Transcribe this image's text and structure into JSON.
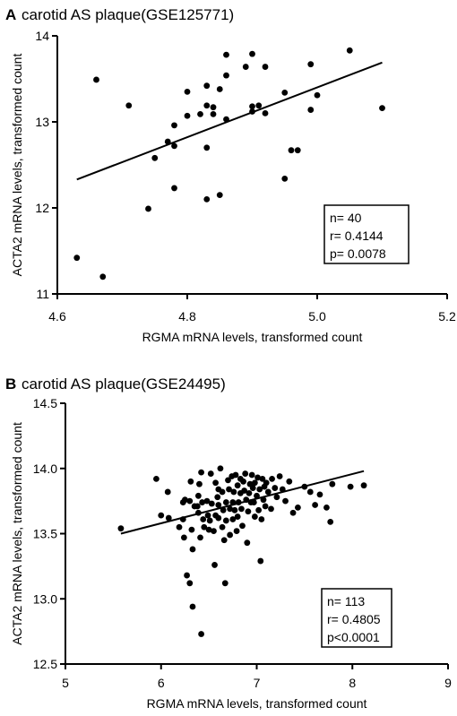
{
  "chart_data": [
    {
      "type": "scatter",
      "panel": "A",
      "title": "carotid AS plaque(GSE125771)",
      "xlabel": "RGMA mRNA levels, transformed count",
      "ylabel": "ACTA2 mRNA levels, transformed count",
      "xlim": [
        4.6,
        5.2
      ],
      "ylim": [
        11,
        14
      ],
      "xticks": [
        "4.6",
        "4.8",
        "5.0",
        "5.2"
      ],
      "yticks": [
        "11",
        "12",
        "13",
        "14"
      ],
      "grid": false,
      "fit_line": {
        "x": [
          4.63,
          5.1
        ],
        "y": [
          12.33,
          13.69
        ]
      },
      "stats": [
        "n= 40",
        "r= 0.4144",
        "p= 0.0078"
      ],
      "points": [
        [
          4.63,
          11.42
        ],
        [
          4.66,
          13.49
        ],
        [
          4.67,
          11.2
        ],
        [
          4.71,
          13.19
        ],
        [
          4.74,
          11.99
        ],
        [
          4.75,
          12.58
        ],
        [
          4.77,
          12.77
        ],
        [
          4.78,
          12.72
        ],
        [
          4.78,
          12.96
        ],
        [
          4.78,
          12.23
        ],
        [
          4.8,
          13.35
        ],
        [
          4.8,
          13.07
        ],
        [
          4.82,
          13.09
        ],
        [
          4.83,
          13.42
        ],
        [
          4.83,
          13.19
        ],
        [
          4.83,
          12.7
        ],
        [
          4.83,
          12.1
        ],
        [
          4.84,
          13.17
        ],
        [
          4.84,
          13.09
        ],
        [
          4.85,
          13.38
        ],
        [
          4.85,
          12.15
        ],
        [
          4.86,
          13.78
        ],
        [
          4.86,
          13.54
        ],
        [
          4.86,
          13.03
        ],
        [
          4.89,
          13.64
        ],
        [
          4.9,
          13.79
        ],
        [
          4.9,
          13.18
        ],
        [
          4.9,
          13.12
        ],
        [
          4.91,
          13.19
        ],
        [
          4.92,
          13.64
        ],
        [
          4.92,
          13.1
        ],
        [
          4.95,
          13.34
        ],
        [
          4.95,
          12.34
        ],
        [
          4.96,
          12.67
        ],
        [
          4.97,
          12.67
        ],
        [
          4.99,
          13.67
        ],
        [
          4.99,
          13.14
        ],
        [
          5.0,
          13.31
        ],
        [
          5.05,
          13.83
        ],
        [
          5.1,
          13.16
        ]
      ]
    },
    {
      "type": "scatter",
      "panel": "B",
      "title": "carotid AS plaque(GSE24495)",
      "xlabel": "RGMA mRNA levels, transformed count",
      "ylabel": "ACTA2 mRNA levels, transformed count",
      "xlim": [
        5,
        9
      ],
      "ylim": [
        12.5,
        14.5
      ],
      "xticks": [
        "5",
        "6",
        "7",
        "8",
        "9"
      ],
      "yticks": [
        "12.5",
        "13.0",
        "13.5",
        "14.0",
        "14.5"
      ],
      "grid": false,
      "fit_line": {
        "x": [
          5.58,
          8.12
        ],
        "y": [
          13.5,
          13.98
        ]
      },
      "stats": [
        "n= 113",
        "r= 0.4805",
        "p<0.0001"
      ],
      "points": [
        [
          5.58,
          13.54
        ],
        [
          5.95,
          13.92
        ],
        [
          6.0,
          13.64
        ],
        [
          6.07,
          13.82
        ],
        [
          6.08,
          13.62
        ],
        [
          6.19,
          13.55
        ],
        [
          6.23,
          13.74
        ],
        [
          6.23,
          13.61
        ],
        [
          6.24,
          13.47
        ],
        [
          6.25,
          13.76
        ],
        [
          6.27,
          13.18
        ],
        [
          6.3,
          13.75
        ],
        [
          6.3,
          13.12
        ],
        [
          6.31,
          13.9
        ],
        [
          6.32,
          13.53
        ],
        [
          6.33,
          13.38
        ],
        [
          6.33,
          12.94
        ],
        [
          6.35,
          13.71
        ],
        [
          6.38,
          13.71
        ],
        [
          6.39,
          13.79
        ],
        [
          6.39,
          13.66
        ],
        [
          6.4,
          13.88
        ],
        [
          6.41,
          13.47
        ],
        [
          6.42,
          12.73
        ],
        [
          6.42,
          13.97
        ],
        [
          6.43,
          13.74
        ],
        [
          6.44,
          13.61
        ],
        [
          6.45,
          13.55
        ],
        [
          6.48,
          13.75
        ],
        [
          6.49,
          13.64
        ],
        [
          6.5,
          13.53
        ],
        [
          6.51,
          13.6
        ],
        [
          6.52,
          13.96
        ],
        [
          6.53,
          13.73
        ],
        [
          6.55,
          13.52
        ],
        [
          6.56,
          13.26
        ],
        [
          6.57,
          13.89
        ],
        [
          6.57,
          13.64
        ],
        [
          6.59,
          13.78
        ],
        [
          6.6,
          13.84
        ],
        [
          6.6,
          13.72
        ],
        [
          6.6,
          13.62
        ],
        [
          6.62,
          14.0
        ],
        [
          6.64,
          13.82
        ],
        [
          6.64,
          13.55
        ],
        [
          6.65,
          13.68
        ],
        [
          6.66,
          13.45
        ],
        [
          6.67,
          13.12
        ],
        [
          6.68,
          13.74
        ],
        [
          6.68,
          13.6
        ],
        [
          6.7,
          13.91
        ],
        [
          6.71,
          13.84
        ],
        [
          6.72,
          13.69
        ],
        [
          6.72,
          13.49
        ],
        [
          6.74,
          13.94
        ],
        [
          6.75,
          13.74
        ],
        [
          6.75,
          13.61
        ],
        [
          6.76,
          13.82
        ],
        [
          6.77,
          13.68
        ],
        [
          6.78,
          13.95
        ],
        [
          6.79,
          13.52
        ],
        [
          6.8,
          13.63
        ],
        [
          6.8,
          13.87
        ],
        [
          6.81,
          13.74
        ],
        [
          6.83,
          13.92
        ],
        [
          6.83,
          13.81
        ],
        [
          6.84,
          13.69
        ],
        [
          6.85,
          13.56
        ],
        [
          6.86,
          13.9
        ],
        [
          6.87,
          13.83
        ],
        [
          6.88,
          13.96
        ],
        [
          6.89,
          13.76
        ],
        [
          6.9,
          13.43
        ],
        [
          6.91,
          13.67
        ],
        [
          6.92,
          13.81
        ],
        [
          6.93,
          13.88
        ],
        [
          6.94,
          13.74
        ],
        [
          6.95,
          13.95
        ],
        [
          6.96,
          13.85
        ],
        [
          6.97,
          13.74
        ],
        [
          6.98,
          13.63
        ],
        [
          6.98,
          13.89
        ],
        [
          7.0,
          13.79
        ],
        [
          7.01,
          13.93
        ],
        [
          7.02,
          13.68
        ],
        [
          7.03,
          13.84
        ],
        [
          7.04,
          13.29
        ],
        [
          7.05,
          13.61
        ],
        [
          7.06,
          13.92
        ],
        [
          7.07,
          13.76
        ],
        [
          7.08,
          13.86
        ],
        [
          7.09,
          13.71
        ],
        [
          7.1,
          13.89
        ],
        [
          7.12,
          13.82
        ],
        [
          7.15,
          13.69
        ],
        [
          7.16,
          13.92
        ],
        [
          7.19,
          13.85
        ],
        [
          7.21,
          13.78
        ],
        [
          7.24,
          13.94
        ],
        [
          7.27,
          13.84
        ],
        [
          7.3,
          13.75
        ],
        [
          7.34,
          13.9
        ],
        [
          7.38,
          13.66
        ],
        [
          7.43,
          13.7
        ],
        [
          7.5,
          13.86
        ],
        [
          7.56,
          13.82
        ],
        [
          7.61,
          13.72
        ],
        [
          7.66,
          13.8
        ],
        [
          7.73,
          13.7
        ],
        [
          7.77,
          13.59
        ],
        [
          7.79,
          13.88
        ],
        [
          7.98,
          13.86
        ],
        [
          8.12,
          13.87
        ]
      ]
    }
  ]
}
